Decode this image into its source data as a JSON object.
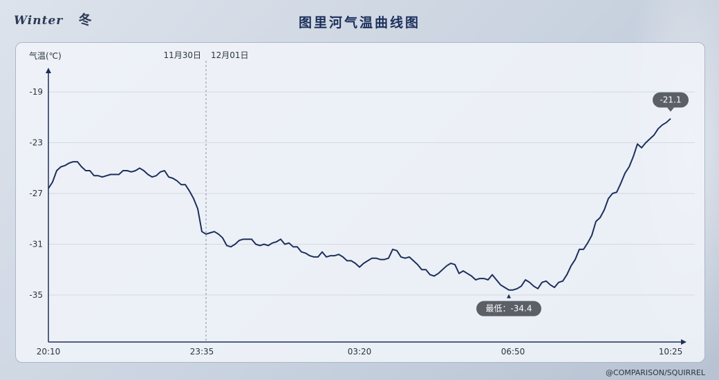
{
  "header": {
    "brand_word": "Winter",
    "brand_season": "冬",
    "title": "图里河气温曲线图"
  },
  "footer": {
    "credit": "@COMPARISON/SQUIRREL"
  },
  "chart_data": {
    "type": "line",
    "title": "图里河气温曲线图",
    "ylabel": "气温(℃)",
    "xlabel": "",
    "ylim": [
      -38.7,
      -17.2
    ],
    "y_ticks": [
      -19,
      -23,
      -27,
      -31,
      -35
    ],
    "x_ticks": [
      "20:10",
      "23:35",
      "03:20",
      "06:50",
      "10:25"
    ],
    "grid": "horizontal",
    "date_divider": {
      "left_label": "11月30日",
      "right_label": "12月01日"
    },
    "annotations": {
      "min_label": "最低：-34.4",
      "last_label": "-21.1"
    },
    "series": [
      {
        "values": [
          -26.6,
          -26.1,
          -25.2,
          -24.9,
          -24.8,
          -24.6,
          -24.5,
          -24.5,
          -24.9,
          -25.2,
          -25.2,
          -25.6,
          -25.6,
          -25.7,
          -25.6,
          -25.5,
          -25.5,
          -25.5,
          -25.2,
          -25.2,
          -25.3,
          -25.2,
          -25.0,
          -25.2,
          -25.5,
          -25.7,
          -25.6,
          -25.3,
          -25.2,
          -25.7,
          -25.8,
          -26.0,
          -26.3,
          -26.3,
          -26.8,
          -27.4,
          -28.2,
          -30.0,
          -30.2,
          -30.1,
          -30.0,
          -30.2,
          -30.5,
          -31.1,
          -31.2,
          -31.0,
          -30.7,
          -30.6,
          -30.6,
          -30.6,
          -31.0,
          -31.1,
          -31.0,
          -31.1,
          -30.9,
          -30.8,
          -30.6,
          -31.0,
          -30.9,
          -31.2,
          -31.2,
          -31.6,
          -31.7,
          -31.9,
          -32.0,
          -32.0,
          -31.6,
          -32.0,
          -31.9,
          -31.9,
          -31.8,
          -32.0,
          -32.3,
          -32.3,
          -32.5,
          -32.8,
          -32.5,
          -32.3,
          -32.1,
          -32.1,
          -32.2,
          -32.2,
          -32.1,
          -31.4,
          -31.5,
          -32.0,
          -32.1,
          -32.0,
          -32.3,
          -32.6,
          -33.0,
          -33.0,
          -33.4,
          -33.5,
          -33.3,
          -33.0,
          -32.7,
          -32.5,
          -32.6,
          -33.3,
          -33.1,
          -33.3,
          -33.5,
          -33.8,
          -33.7,
          -33.7,
          -33.8,
          -33.4,
          -33.8,
          -34.2,
          -34.4,
          -34.6,
          -34.6,
          -34.5,
          -34.3,
          -33.8,
          -34.0,
          -34.3,
          -34.5,
          -34.0,
          -33.9,
          -34.2,
          -34.4,
          -34.0,
          -33.9,
          -33.4,
          -32.7,
          -32.2,
          -31.4,
          -31.4,
          -30.9,
          -30.3,
          -29.2,
          -28.9,
          -28.3,
          -27.4,
          -27.0,
          -26.9,
          -26.2,
          -25.4,
          -24.9,
          -24.1,
          -23.1,
          -23.4,
          -23.0,
          -22.7,
          -22.4,
          -21.9,
          -21.6,
          -21.4,
          -21.1
        ]
      }
    ]
  }
}
